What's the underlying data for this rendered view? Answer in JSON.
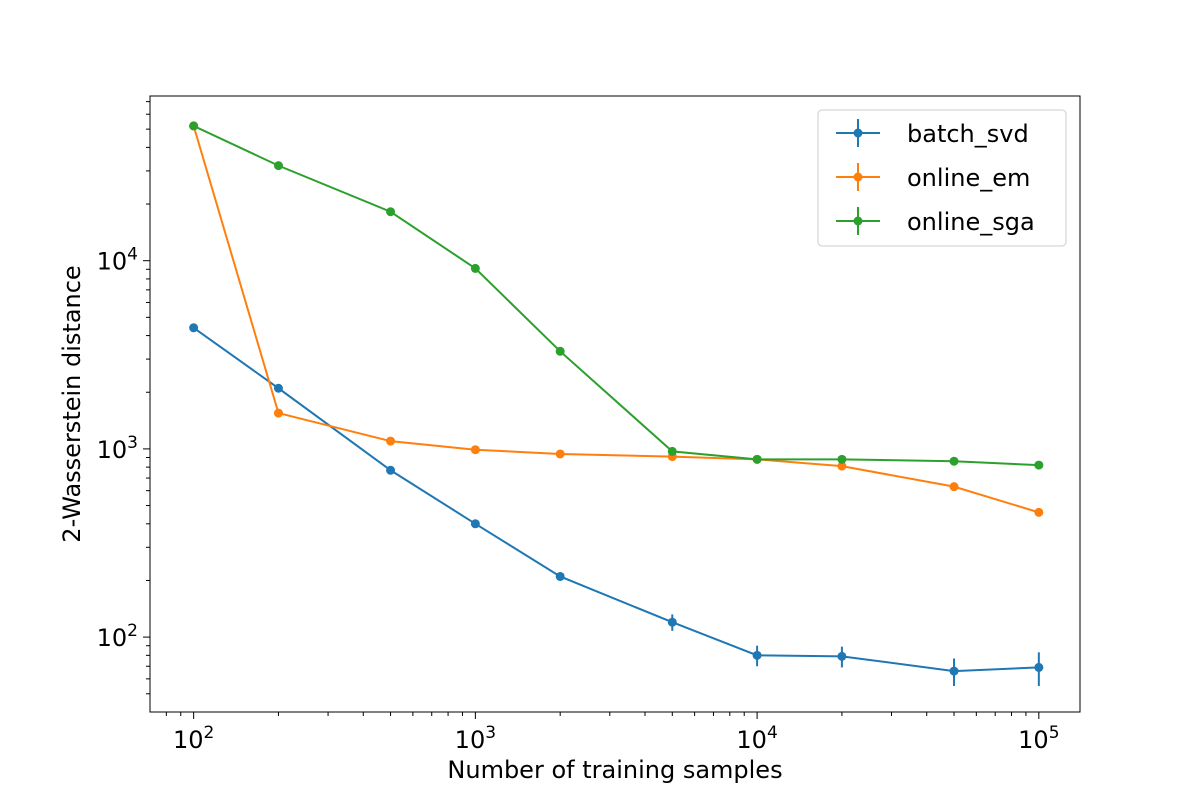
{
  "chart_data": {
    "type": "line",
    "title": "",
    "xlabel": "Number of training samples",
    "ylabel": "2-Wasserstein distance",
    "xscale": "log",
    "yscale": "log",
    "xlim": [
      70,
      140000
    ],
    "ylim": [
      40,
      75000
    ],
    "x": [
      100,
      200,
      500,
      1000,
      2000,
      5000,
      10000,
      20000,
      50000,
      100000
    ],
    "x_tick_labels": [
      {
        "value": 100,
        "base": "10",
        "exp": "2"
      },
      {
        "value": 1000,
        "base": "10",
        "exp": "3"
      },
      {
        "value": 10000,
        "base": "10",
        "exp": "4"
      },
      {
        "value": 100000,
        "base": "10",
        "exp": "5"
      }
    ],
    "y_tick_labels": [
      {
        "value": 100,
        "base": "10",
        "exp": "2"
      },
      {
        "value": 1000,
        "base": "10",
        "exp": "3"
      },
      {
        "value": 10000,
        "base": "10",
        "exp": "4"
      }
    ],
    "grid": false,
    "legend_position": "top-right",
    "series": [
      {
        "name": "batch_svd",
        "color": "#1f77b4",
        "values": [
          4400,
          2100,
          770,
          400,
          210,
          120,
          80,
          79,
          66,
          69
        ],
        "error_low": [
          0,
          0,
          0,
          0,
          0,
          12,
          10,
          10,
          11,
          14
        ],
        "error_high": [
          0,
          0,
          0,
          0,
          0,
          12,
          10,
          10,
          11,
          14
        ]
      },
      {
        "name": "online_em",
        "color": "#ff7f0e",
        "values": [
          52000,
          1550,
          1100,
          990,
          940,
          910,
          880,
          810,
          630,
          460
        ],
        "error_low": [
          0,
          0,
          0,
          0,
          0,
          0,
          0,
          0,
          0,
          0
        ],
        "error_high": [
          0,
          0,
          0,
          0,
          0,
          0,
          0,
          0,
          0,
          0
        ]
      },
      {
        "name": "online_sga",
        "color": "#2ca02c",
        "values": [
          52000,
          32000,
          18200,
          9100,
          3300,
          970,
          880,
          880,
          860,
          820
        ],
        "error_low": [
          0,
          0,
          0,
          0,
          0,
          0,
          0,
          0,
          0,
          0
        ],
        "error_high": [
          0,
          0,
          0,
          0,
          0,
          0,
          0,
          0,
          0,
          0
        ]
      }
    ]
  }
}
